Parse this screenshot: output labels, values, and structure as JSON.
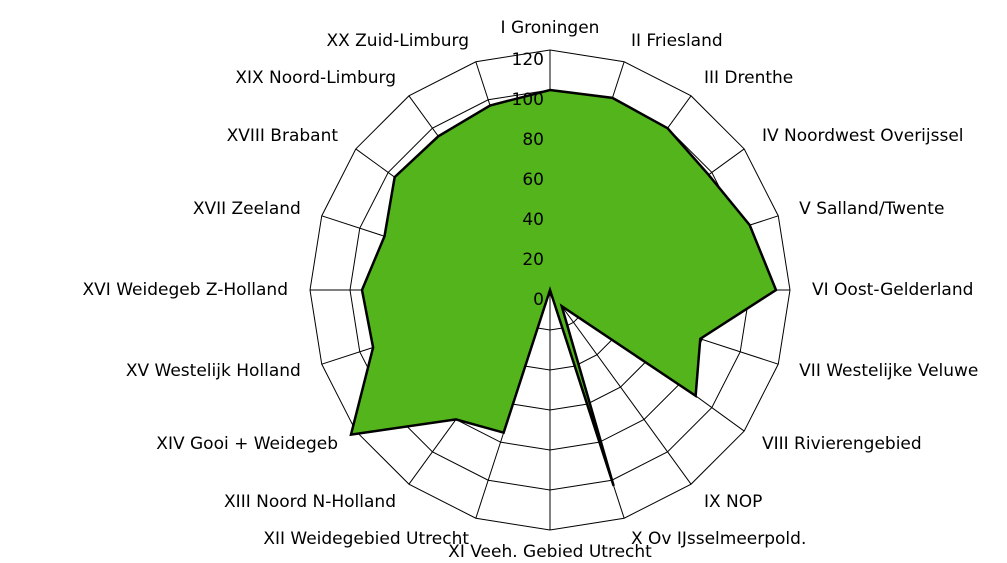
{
  "chart_data": {
    "type": "radar",
    "categories": [
      "I Groningen",
      "II Friesland",
      "III Drenthe",
      "IV Noordwest Overijssel",
      "V Salland/Twente",
      "VI Oost-Gelderland",
      "VII Westelijke Veluwe",
      "VIII Rivierengebied",
      "IX NOP",
      "X Ov IJsselmeerpold.",
      "XI Veeh. Gebied Utrecht",
      "XII Weidegebied Utrecht",
      "XIII Noord N-Holland",
      "XIV Gooi + Weidegeb",
      "XV Westelijk Holland",
      "XVI Weidegeb Z-Holland",
      "XVII Zeeland",
      "XVIII Brabant",
      "XIX Noord-Limburg",
      "XX Zuid-Limburg"
    ],
    "values": [
      100,
      101,
      100,
      98,
      105,
      113,
      79,
      90,
      10,
      103,
      0,
      75,
      80,
      123,
      93,
      94,
      87,
      96,
      95,
      97
    ],
    "color": "#53b41b",
    "ylim": [
      0,
      120
    ],
    "yticks": [
      0,
      20,
      40,
      60,
      80,
      100,
      120
    ]
  }
}
